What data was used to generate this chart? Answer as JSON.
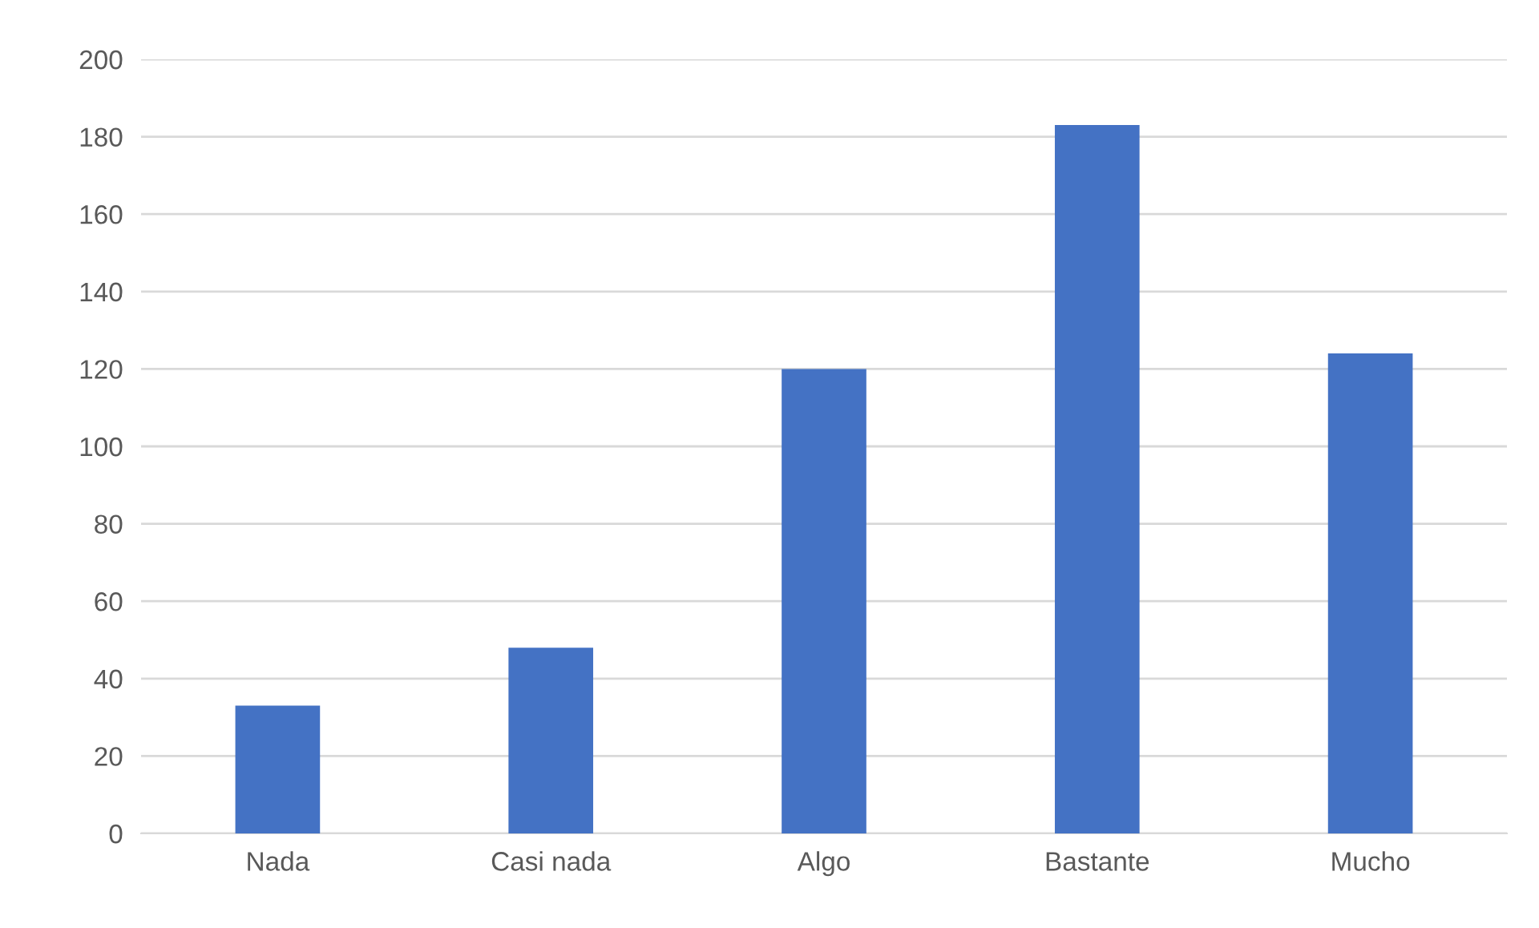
{
  "chart_data": {
    "type": "bar",
    "categories": [
      "Nada",
      "Casi nada",
      "Algo",
      "Bastante",
      "Mucho"
    ],
    "values": [
      33,
      48,
      120,
      183,
      124
    ],
    "color": "#4472c4",
    "ylim": [
      0,
      200
    ],
    "yticks": [
      0,
      20,
      40,
      60,
      80,
      100,
      120,
      140,
      160,
      180,
      200
    ],
    "grid": "y"
  }
}
